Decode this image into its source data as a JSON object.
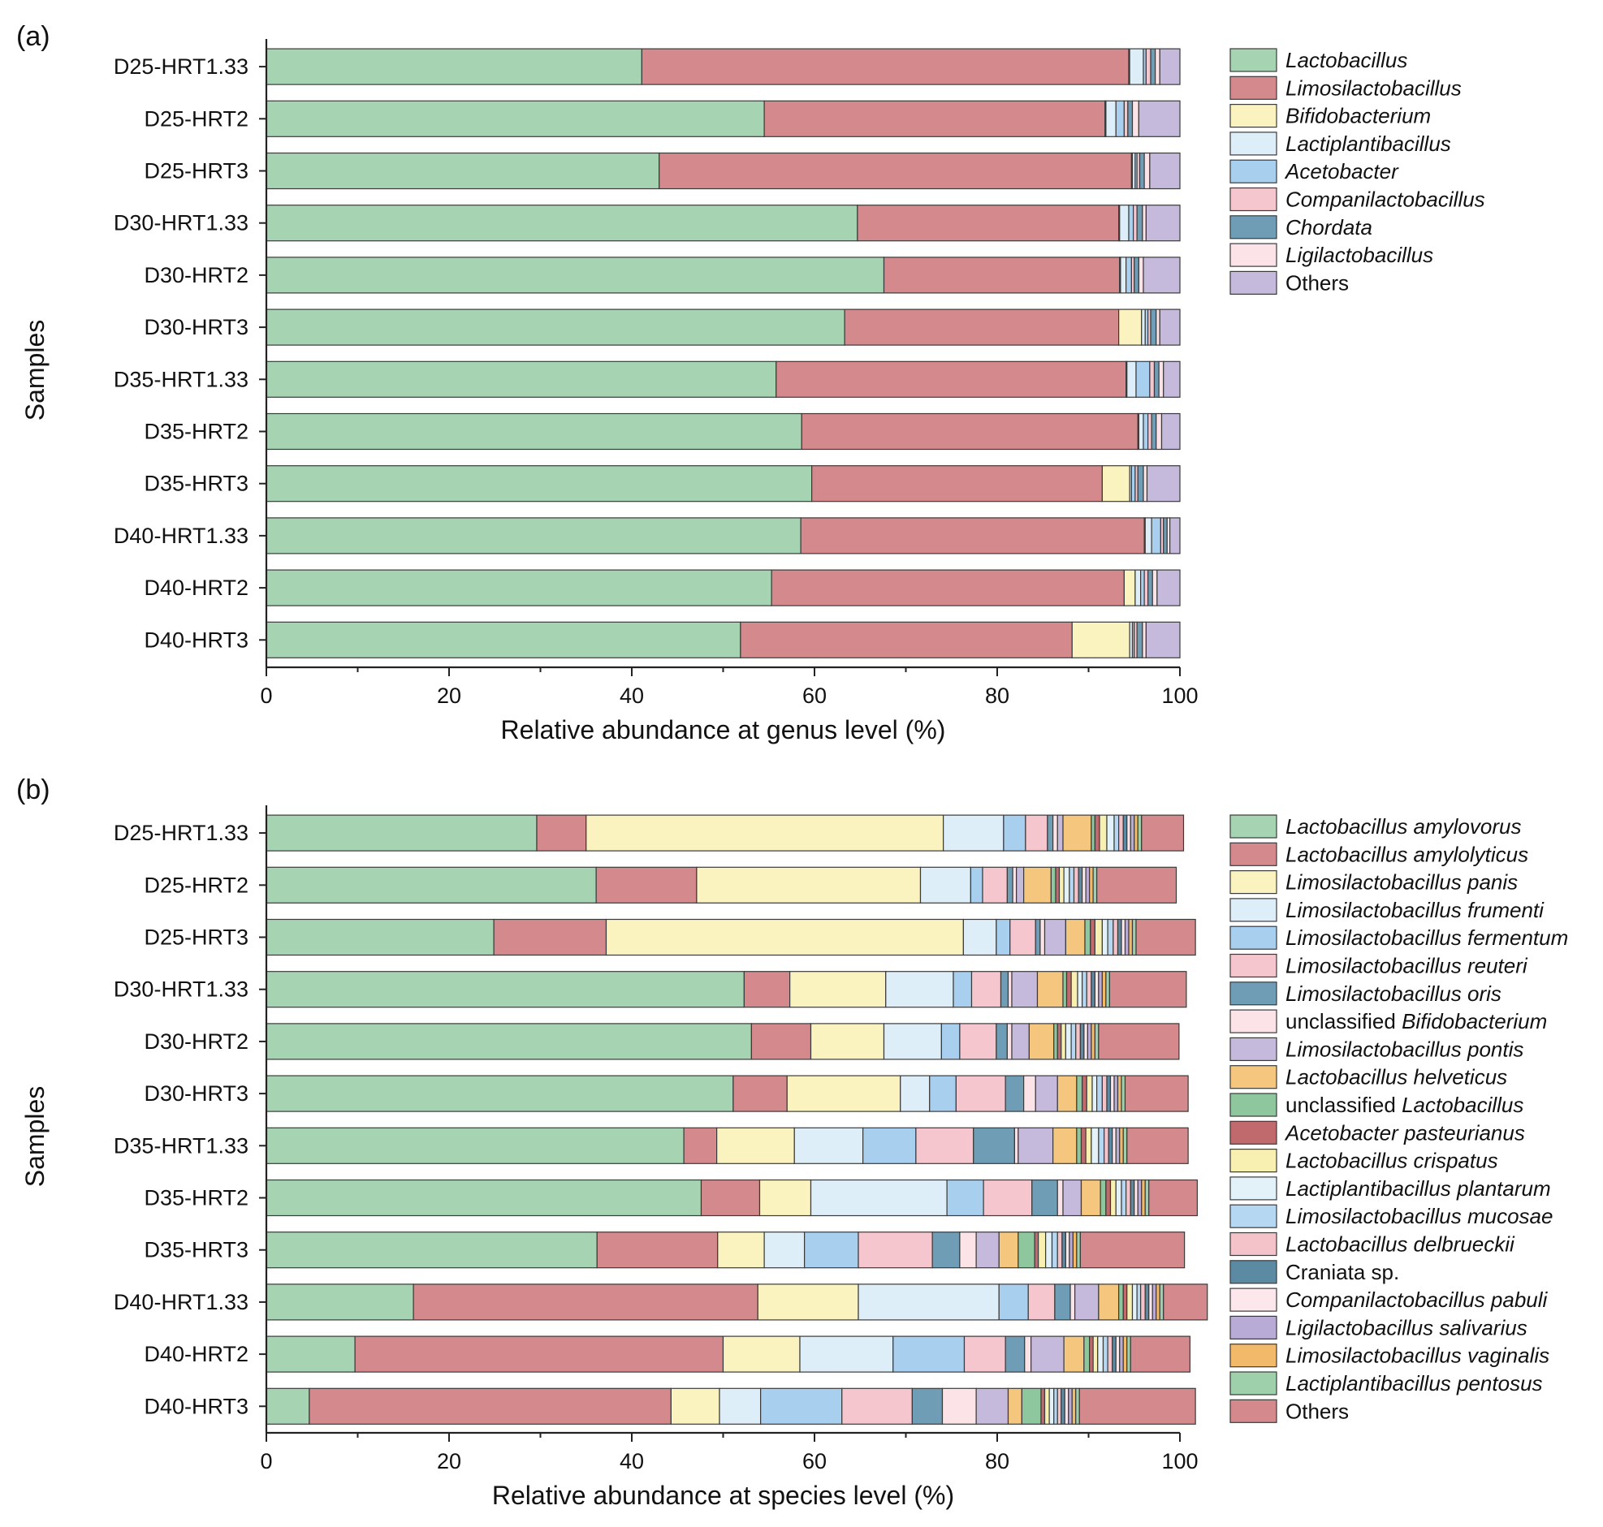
{
  "chart_data": [
    {
      "type": "bar",
      "orientation": "horizontal",
      "stacked": true,
      "panel_label": "(a)",
      "title": "",
      "xlabel": "Relative abundance at genus level (%)",
      "ylabel": "Samples",
      "xlim": [
        0,
        100
      ],
      "xticks": [
        "0",
        "20",
        "40",
        "60",
        "80",
        "100"
      ],
      "legend_position": "right",
      "categories": [
        "D25-HRT1.33",
        "D25-HRT2",
        "D25-HRT3",
        "D30-HRT1.33",
        "D30-HRT2",
        "D30-HRT3",
        "D35-HRT1.33",
        "D35-HRT2",
        "D35-HRT3",
        "D40-HRT1.33",
        "D40-HRT2",
        "D40-HRT3"
      ],
      "series": [
        {
          "name": "Lactobacillus",
          "legend": [
            {
              "t": "Lactobacillus",
              "i": true
            }
          ],
          "color": "#a6d4b2",
          "values": [
            41.1,
            54.5,
            43.0,
            64.7,
            67.6,
            63.3,
            55.8,
            58.6,
            59.7,
            58.5,
            55.3,
            51.9
          ]
        },
        {
          "name": "Limosilactobacillus",
          "legend": [
            {
              "t": "Limosilactobacillus",
              "i": true
            }
          ],
          "color": "#d48a8c",
          "values": [
            53.3,
            37.3,
            51.7,
            28.6,
            25.8,
            30.0,
            38.3,
            36.8,
            31.8,
            37.6,
            38.6,
            36.3
          ]
        },
        {
          "name": "Bifidobacterium",
          "legend": [
            {
              "t": "Bifidobacterium",
              "i": true
            }
          ],
          "color": "#fbf3bf",
          "values": [
            0.1,
            0.1,
            0.1,
            0.1,
            0.1,
            2.5,
            0.1,
            0.1,
            3.0,
            0.1,
            1.2,
            6.3
          ]
        },
        {
          "name": "Lactiplantibacillus",
          "legend": [
            {
              "t": "Lactiplantibacillus",
              "i": true
            }
          ],
          "color": "#ddeef8",
          "values": [
            1.5,
            1.1,
            0.3,
            1.0,
            0.6,
            0.4,
            1.0,
            0.5,
            0.2,
            0.7,
            0.6,
            0.3
          ]
        },
        {
          "name": "Acetobacter",
          "legend": [
            {
              "t": "Acetobacter",
              "i": true
            }
          ],
          "color": "#a9cfef",
          "values": [
            0.3,
            0.9,
            0.2,
            0.5,
            0.6,
            0.3,
            1.5,
            0.5,
            0.4,
            1.0,
            0.4,
            0.2
          ]
        },
        {
          "name": "Companilactobacillus",
          "legend": [
            {
              "t": "Companilactobacillus",
              "i": true
            }
          ],
          "color": "#f6c6ce",
          "values": [
            0.5,
            0.4,
            0.3,
            0.4,
            0.3,
            0.3,
            0.5,
            0.4,
            0.3,
            0.3,
            0.4,
            0.3
          ]
        },
        {
          "name": "Chordata",
          "legend": [
            {
              "t": "Chordata",
              "i": true
            }
          ],
          "color": "#6f9db5",
          "values": [
            0.5,
            0.5,
            0.5,
            0.6,
            0.5,
            0.6,
            0.5,
            0.5,
            0.6,
            0.4,
            0.5,
            0.6
          ]
        },
        {
          "name": "Ligilactobacillus",
          "legend": [
            {
              "t": "Ligilactobacillus",
              "i": true
            }
          ],
          "color": "#fbe3e8",
          "values": [
            0.5,
            0.7,
            0.6,
            0.4,
            0.5,
            0.4,
            0.5,
            0.6,
            0.4,
            0.3,
            0.5,
            0.4
          ]
        },
        {
          "name": "Others",
          "legend": [
            {
              "t": "Others",
              "i": false
            }
          ],
          "color": "#c5b9dc",
          "values": [
            2.2,
            4.5,
            3.3,
            3.7,
            4.0,
            2.2,
            1.8,
            2.0,
            3.6,
            1.1,
            2.5,
            3.7
          ]
        }
      ]
    },
    {
      "type": "bar",
      "orientation": "horizontal",
      "stacked": true,
      "panel_label": "(b)",
      "title": "",
      "xlabel": "Relative abundance at species level (%)",
      "ylabel": "Samples",
      "xlim": [
        0,
        100
      ],
      "xticks": [
        "0",
        "20",
        "40",
        "60",
        "80",
        "100"
      ],
      "legend_position": "right",
      "categories": [
        "D25-HRT1.33",
        "D25-HRT2",
        "D25-HRT3",
        "D30-HRT1.33",
        "D30-HRT2",
        "D30-HRT3",
        "D35-HRT1.33",
        "D35-HRT2",
        "D35-HRT3",
        "D40-HRT1.33",
        "D40-HRT2",
        "D40-HRT3"
      ],
      "series": [
        {
          "name": "Lactobacillus amylovorus",
          "legend": [
            {
              "t": "Lactobacillus amylovorus",
              "i": true
            }
          ],
          "color": "#a6d4b2",
          "values": [
            29.6,
            36.1,
            24.9,
            52.3,
            53.1,
            51.1,
            45.7,
            47.6,
            36.2,
            16.1,
            9.7,
            4.7
          ]
        },
        {
          "name": "Lactobacillus amylolyticus",
          "legend": [
            {
              "t": "Lactobacillus amylolyticus",
              "i": true
            }
          ],
          "color": "#d48a8c",
          "values": [
            5.4,
            11.0,
            12.3,
            5.0,
            6.5,
            5.9,
            3.6,
            6.4,
            13.2,
            37.7,
            40.3,
            39.6
          ]
        },
        {
          "name": "Limosilactobacillus panis",
          "legend": [
            {
              "t": "Limosilactobacillus panis",
              "i": true
            }
          ],
          "color": "#fbf3bf",
          "values": [
            39.1,
            24.5,
            39.1,
            10.5,
            8.0,
            12.4,
            8.5,
            5.6,
            5.1,
            11.0,
            8.4,
            5.3
          ]
        },
        {
          "name": "Limosilactobacillus frumenti",
          "legend": [
            {
              "t": "Limosilactobacillus frumenti",
              "i": true
            }
          ],
          "color": "#ddeef8",
          "values": [
            6.6,
            5.5,
            3.6,
            7.4,
            6.3,
            3.2,
            7.5,
            14.9,
            4.4,
            15.4,
            10.2,
            4.5
          ]
        },
        {
          "name": "Limosilactobacillus fermentum",
          "legend": [
            {
              "t": "Limosilactobacillus fermentum",
              "i": true
            }
          ],
          "color": "#a9cfef",
          "values": [
            2.4,
            1.3,
            1.5,
            2.0,
            2.0,
            2.9,
            5.8,
            4.0,
            5.9,
            3.2,
            7.8,
            8.9
          ]
        },
        {
          "name": "Limosilactobacillus reuteri",
          "legend": [
            {
              "t": "Limosilactobacillus reuteri",
              "i": true
            }
          ],
          "color": "#f6c6ce",
          "values": [
            2.4,
            2.7,
            2.8,
            3.2,
            4.0,
            5.4,
            6.3,
            5.3,
            8.1,
            2.9,
            4.5,
            7.7
          ]
        },
        {
          "name": "Limosilactobacillus oris",
          "legend": [
            {
              "t": "Limosilactobacillus oris",
              "i": true
            }
          ],
          "color": "#6f9db5",
          "values": [
            0.6,
            0.6,
            0.5,
            0.8,
            1.2,
            2.0,
            4.5,
            2.8,
            3.0,
            1.7,
            2.1,
            3.3
          ]
        },
        {
          "name": "unclassified Bifidobacterium",
          "legend": [
            {
              "t": "unclassified ",
              "i": false
            },
            {
              "t": "Bifidobacterium",
              "i": true
            }
          ],
          "color": "#fbe3e8",
          "values": [
            0.5,
            0.4,
            0.5,
            0.4,
            0.5,
            1.3,
            0.4,
            0.6,
            1.8,
            0.5,
            0.7,
            3.7
          ]
        },
        {
          "name": "Limosilactobacillus pontis",
          "legend": [
            {
              "t": "Limosilactobacillus pontis",
              "i": true
            }
          ],
          "color": "#c5b9dc",
          "values": [
            0.6,
            0.8,
            2.3,
            2.8,
            1.9,
            2.4,
            3.8,
            2.0,
            2.5,
            2.6,
            3.6,
            3.5
          ]
        },
        {
          "name": "Lactobacillus helveticus",
          "legend": [
            {
              "t": "Lactobacillus helveticus",
              "i": true
            }
          ],
          "color": "#f5c77e",
          "values": [
            3.1,
            3.0,
            2.1,
            2.8,
            2.7,
            2.1,
            2.6,
            2.1,
            2.1,
            2.2,
            2.2,
            1.5
          ]
        },
        {
          "name": "unclassified Lactobacillus",
          "legend": [
            {
              "t": "unclassified ",
              "i": false
            },
            {
              "t": "Lactobacillus",
              "i": true
            }
          ],
          "color": "#8ec79d",
          "values": [
            0.4,
            0.5,
            0.6,
            0.4,
            0.4,
            0.6,
            0.5,
            0.6,
            1.8,
            0.5,
            0.6,
            2.1
          ]
        },
        {
          "name": "Acetobacter pasteurianus",
          "legend": [
            {
              "t": "Acetobacter pasteurianus",
              "i": true
            }
          ],
          "color": "#c06a6e",
          "values": [
            0.5,
            0.4,
            0.5,
            0.5,
            0.4,
            0.5,
            0.5,
            0.5,
            0.4,
            0.4,
            0.4,
            0.4
          ]
        },
        {
          "name": "Lactobacillus crispatus",
          "legend": [
            {
              "t": "Lactobacillus crispatus",
              "i": true
            }
          ],
          "color": "#f8f0b0",
          "values": [
            0.8,
            0.5,
            0.8,
            0.7,
            0.5,
            0.6,
            0.6,
            0.6,
            0.8,
            0.6,
            0.5,
            0.5
          ]
        },
        {
          "name": "Lactiplantibacillus plantarum",
          "legend": [
            {
              "t": "Lactiplantibacillus plantarum",
              "i": true
            }
          ],
          "color": "#e3f1f9",
          "values": [
            0.8,
            0.6,
            0.6,
            0.5,
            0.6,
            0.5,
            0.8,
            0.6,
            0.7,
            0.5,
            0.6,
            0.5
          ]
        },
        {
          "name": "Limosilactobacillus mucosae",
          "legend": [
            {
              "t": "Limosilactobacillus mucosae",
              "i": true
            }
          ],
          "color": "#b5d7f1",
          "values": [
            0.5,
            0.5,
            0.6,
            0.5,
            0.5,
            0.6,
            0.6,
            0.5,
            0.6,
            0.4,
            0.5,
            0.4
          ]
        },
        {
          "name": "Lactobacillus delbrueckii",
          "legend": [
            {
              "t": "Lactobacillus delbrueckii",
              "i": true
            }
          ],
          "color": "#f4c2c9",
          "values": [
            0.5,
            0.5,
            0.5,
            0.5,
            0.5,
            0.5,
            0.5,
            0.5,
            0.5,
            0.5,
            0.5,
            0.4
          ]
        },
        {
          "name": "Craniata sp.",
          "legend": [
            {
              "t": "Craniata sp.",
              "i": false
            }
          ],
          "color": "#5c8aa3",
          "values": [
            0.4,
            0.4,
            0.4,
            0.4,
            0.4,
            0.4,
            0.4,
            0.4,
            0.4,
            0.4,
            0.4,
            0.4
          ]
        },
        {
          "name": "Companilactobacillus pabuli",
          "legend": [
            {
              "t": "Companilactobacillus pabuli",
              "i": true
            }
          ],
          "color": "#fce8ec",
          "values": [
            0.4,
            0.4,
            0.4,
            0.4,
            0.4,
            0.4,
            0.4,
            0.4,
            0.4,
            0.4,
            0.4,
            0.4
          ]
        },
        {
          "name": "Ligilactobacillus salivarius",
          "legend": [
            {
              "t": "Ligilactobacillus salivarius",
              "i": true
            }
          ],
          "color": "#b8acd6",
          "values": [
            0.4,
            0.4,
            0.4,
            0.4,
            0.4,
            0.4,
            0.4,
            0.4,
            0.4,
            0.4,
            0.4,
            0.4
          ]
        },
        {
          "name": "Limosilactobacillus vaginalis",
          "legend": [
            {
              "t": "Limosilactobacillus vaginalis",
              "i": true
            }
          ],
          "color": "#f3b96a",
          "values": [
            0.4,
            0.4,
            0.4,
            0.4,
            0.4,
            0.4,
            0.4,
            0.4,
            0.4,
            0.4,
            0.4,
            0.4
          ]
        },
        {
          "name": "Lactiplantibacillus pentosus",
          "legend": [
            {
              "t": "Lactiplantibacillus pentosus",
              "i": true
            }
          ],
          "color": "#9fd0ac",
          "values": [
            0.4,
            0.4,
            0.4,
            0.4,
            0.4,
            0.4,
            0.4,
            0.4,
            0.4,
            0.4,
            0.4,
            0.4
          ]
        },
        {
          "name": "Others",
          "legend": [
            {
              "t": "Others",
              "i": false
            }
          ],
          "color": "#d48a8c",
          "values": [
            4.6,
            8.7,
            6.5,
            8.4,
            8.8,
            6.9,
            6.7,
            5.3,
            11.4,
            4.8,
            6.5,
            12.7
          ]
        }
      ]
    }
  ]
}
